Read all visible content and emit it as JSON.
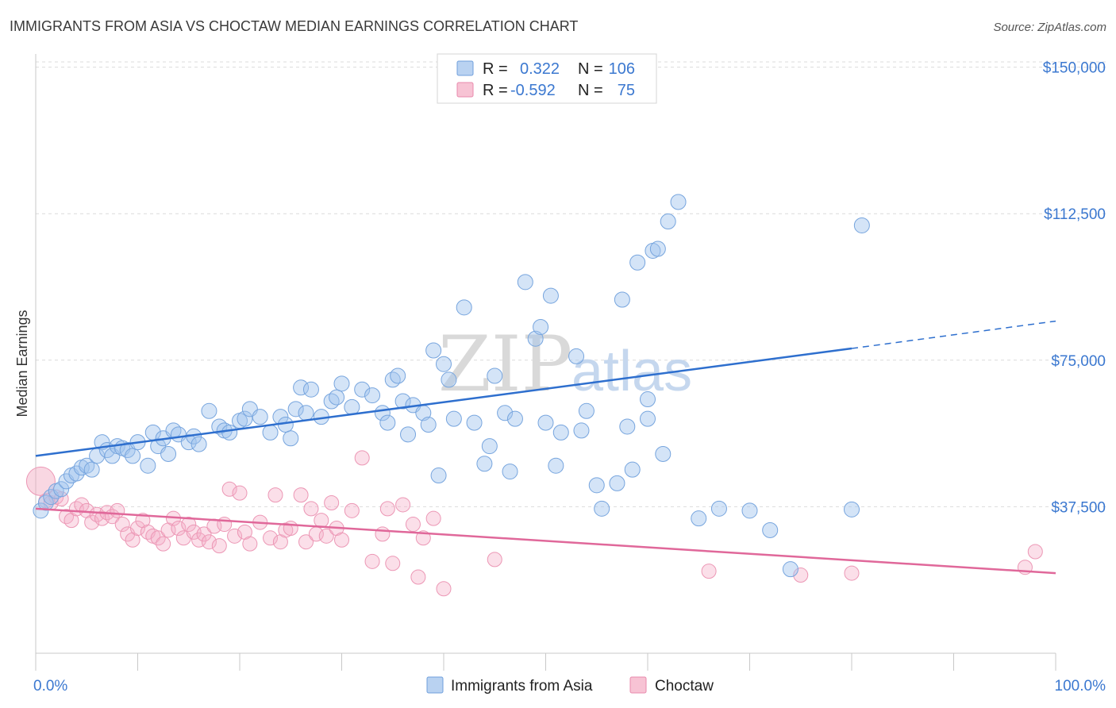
{
  "title": "IMMIGRANTS FROM ASIA VS CHOCTAW MEDIAN EARNINGS CORRELATION CHART",
  "source": "Source: ZipAtlas.com",
  "watermark": {
    "zip": "ZIP",
    "atlas": "atlas"
  },
  "colors": {
    "blue": "#8fb8e8",
    "blue_line": "#2e6fce",
    "pink": "#f2a7bf",
    "pink_line": "#e0689a",
    "text_blue": "#3b78d0"
  },
  "legend": {
    "rows": [
      {
        "r_label": "R =",
        "r_value": "0.322",
        "n_label": "N =",
        "n_value": "106"
      },
      {
        "r_label": "R =",
        "r_value": "-0.592",
        "n_label": "N =",
        "n_value": "75"
      }
    ]
  },
  "bottom_legend": [
    "Immigrants from Asia",
    "Choctaw"
  ],
  "chart_data": {
    "type": "scatter",
    "title": "IMMIGRANTS FROM ASIA VS CHOCTAW MEDIAN EARNINGS CORRELATION CHART",
    "xlabel": "",
    "ylabel": "Median Earnings",
    "xlim": [
      0,
      100
    ],
    "ylim": [
      0,
      155000
    ],
    "x_tick_labels": [
      "0.0%",
      "100.0%"
    ],
    "y_ticks": [
      37500,
      75000,
      112500,
      150000
    ],
    "y_tick_labels": [
      "$37,500",
      "$75,000",
      "$112,500",
      "$150,000"
    ],
    "grid": true,
    "legend_position": "top-center",
    "series": [
      {
        "name": "Immigrants from Asia",
        "r": 0.322,
        "n": 106,
        "trend": {
          "x0": 0,
          "y0": 50500,
          "x1": 80,
          "y1": 78000,
          "dash_to_x": 100,
          "dash_to_y": 85000
        },
        "points": [
          [
            0.5,
            36500
          ],
          [
            1,
            38500
          ],
          [
            1.5,
            40000
          ],
          [
            2,
            41500
          ],
          [
            2.5,
            42000
          ],
          [
            3,
            44000
          ],
          [
            3.5,
            45500
          ],
          [
            4,
            46000
          ],
          [
            4.5,
            47500
          ],
          [
            5,
            48000
          ],
          [
            5.5,
            47000
          ],
          [
            6,
            50500
          ],
          [
            6.5,
            54000
          ],
          [
            7,
            52000
          ],
          [
            7.5,
            50500
          ],
          [
            8,
            53000
          ],
          [
            8.5,
            52500
          ],
          [
            9,
            52000
          ],
          [
            9.5,
            50500
          ],
          [
            10,
            54000
          ],
          [
            11,
            48000
          ],
          [
            11.5,
            56500
          ],
          [
            12,
            53000
          ],
          [
            12.5,
            55000
          ],
          [
            13,
            51000
          ],
          [
            13.5,
            57000
          ],
          [
            14,
            56000
          ],
          [
            15,
            54000
          ],
          [
            15.5,
            55500
          ],
          [
            16,
            53500
          ],
          [
            17,
            62000
          ],
          [
            18,
            58000
          ],
          [
            18.5,
            57000
          ],
          [
            19,
            56500
          ],
          [
            20,
            59500
          ],
          [
            20.5,
            60000
          ],
          [
            21,
            62500
          ],
          [
            22,
            60500
          ],
          [
            23,
            56500
          ],
          [
            24,
            60500
          ],
          [
            24.5,
            58500
          ],
          [
            25,
            55000
          ],
          [
            25.5,
            62500
          ],
          [
            26,
            68000
          ],
          [
            26.5,
            61500
          ],
          [
            27,
            67500
          ],
          [
            28,
            60500
          ],
          [
            29,
            64500
          ],
          [
            29.5,
            65500
          ],
          [
            30,
            69000
          ],
          [
            31,
            63000
          ],
          [
            32,
            67500
          ],
          [
            33,
            66000
          ],
          [
            34,
            61500
          ],
          [
            34.5,
            59000
          ],
          [
            35,
            70000
          ],
          [
            35.5,
            71000
          ],
          [
            36,
            64500
          ],
          [
            36.5,
            56000
          ],
          [
            37,
            63500
          ],
          [
            38,
            61500
          ],
          [
            38.5,
            58500
          ],
          [
            39,
            77500
          ],
          [
            39.5,
            45500
          ],
          [
            40,
            74000
          ],
          [
            40.5,
            70000
          ],
          [
            41,
            60000
          ],
          [
            42,
            88500
          ],
          [
            43,
            59000
          ],
          [
            44,
            48500
          ],
          [
            44.5,
            53000
          ],
          [
            45,
            71000
          ],
          [
            46,
            61500
          ],
          [
            46.5,
            46500
          ],
          [
            47,
            60000
          ],
          [
            48,
            95000
          ],
          [
            49,
            80500
          ],
          [
            49.5,
            83500
          ],
          [
            50,
            59000
          ],
          [
            50.5,
            91500
          ],
          [
            51,
            48000
          ],
          [
            51.5,
            56500
          ],
          [
            53,
            76000
          ],
          [
            53.5,
            57000
          ],
          [
            54,
            62000
          ],
          [
            55,
            43000
          ],
          [
            55.5,
            37000
          ],
          [
            57,
            43500
          ],
          [
            57.5,
            90500
          ],
          [
            58,
            58000
          ],
          [
            58.5,
            47000
          ],
          [
            59,
            100000
          ],
          [
            60,
            65000
          ],
          [
            60.5,
            103000
          ],
          [
            61,
            103500
          ],
          [
            61.5,
            51000
          ],
          [
            62,
            110500
          ],
          [
            63,
            115500
          ],
          [
            65,
            34500
          ],
          [
            67,
            37000
          ],
          [
            70,
            36500
          ],
          [
            72,
            31500
          ],
          [
            74,
            21500
          ],
          [
            80,
            36800
          ],
          [
            81,
            109500
          ],
          [
            60,
            60000
          ]
        ]
      },
      {
        "name": "Choctaw",
        "r": -0.592,
        "n": 75,
        "trend": {
          "x0": 0,
          "y0": 37000,
          "x1": 100,
          "y1": 20500
        },
        "points": [
          [
            0.5,
            44000
          ],
          [
            1,
            39000
          ],
          [
            1.5,
            38500
          ],
          [
            2,
            40000
          ],
          [
            2.5,
            39500
          ],
          [
            3,
            35000
          ],
          [
            3.5,
            34000
          ],
          [
            4,
            37000
          ],
          [
            4.5,
            38000
          ],
          [
            5,
            36500
          ],
          [
            5.5,
            33500
          ],
          [
            6,
            35500
          ],
          [
            6.5,
            34500
          ],
          [
            7,
            36000
          ],
          [
            7.5,
            35000
          ],
          [
            8,
            36500
          ],
          [
            8.5,
            33000
          ],
          [
            9,
            30500
          ],
          [
            9.5,
            29000
          ],
          [
            10,
            32000
          ],
          [
            10.5,
            34000
          ],
          [
            11,
            31000
          ],
          [
            11.5,
            30000
          ],
          [
            12,
            29500
          ],
          [
            12.5,
            28000
          ],
          [
            13,
            31500
          ],
          [
            13.5,
            34500
          ],
          [
            14,
            32000
          ],
          [
            14.5,
            29500
          ],
          [
            15,
            33000
          ],
          [
            15.5,
            31000
          ],
          [
            16,
            29000
          ],
          [
            16.5,
            30500
          ],
          [
            17,
            28500
          ],
          [
            17.5,
            32500
          ],
          [
            18,
            27500
          ],
          [
            18.5,
            33000
          ],
          [
            19,
            42000
          ],
          [
            19.5,
            30000
          ],
          [
            20,
            41000
          ],
          [
            20.5,
            31000
          ],
          [
            21,
            28000
          ],
          [
            22,
            33500
          ],
          [
            23,
            29500
          ],
          [
            23.5,
            40500
          ],
          [
            24,
            28500
          ],
          [
            24.5,
            31500
          ],
          [
            25,
            32000
          ],
          [
            26,
            40500
          ],
          [
            26.5,
            28500
          ],
          [
            27,
            37000
          ],
          [
            27.5,
            30500
          ],
          [
            28,
            34000
          ],
          [
            28.5,
            30000
          ],
          [
            29,
            38500
          ],
          [
            29.5,
            32000
          ],
          [
            30,
            29000
          ],
          [
            31,
            36500
          ],
          [
            32,
            50000
          ],
          [
            33,
            23500
          ],
          [
            34,
            30500
          ],
          [
            34.5,
            37000
          ],
          [
            35,
            23000
          ],
          [
            36,
            38000
          ],
          [
            37,
            33000
          ],
          [
            37.5,
            19500
          ],
          [
            38,
            29500
          ],
          [
            39,
            34500
          ],
          [
            40,
            16500
          ],
          [
            45,
            24000
          ],
          [
            66,
            21000
          ],
          [
            75,
            20000
          ],
          [
            80,
            20500
          ],
          [
            97,
            22000
          ],
          [
            98,
            26000
          ]
        ]
      }
    ]
  }
}
